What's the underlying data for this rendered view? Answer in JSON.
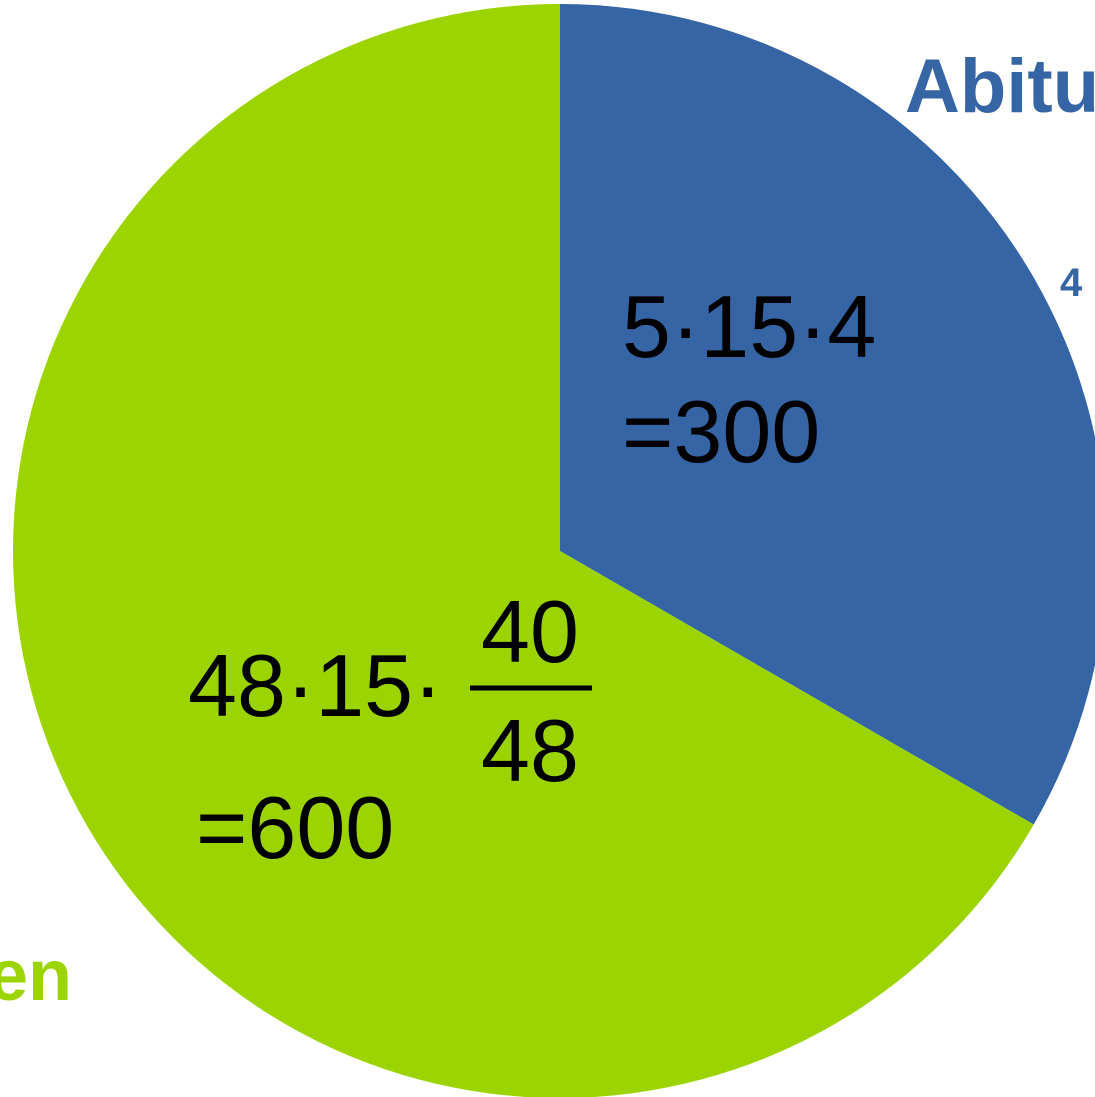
{
  "chart_data": {
    "type": "pie",
    "slices": [
      {
        "key": "abitur",
        "value": 300,
        "color": "#3565a5",
        "formula": "5·15·4",
        "result": "=300"
      },
      {
        "key": "other",
        "value": 600,
        "color": "#9bd400",
        "formula_prefix": "48·15·",
        "fraction_numerator": "40",
        "fraction_denominator": "48",
        "result": "=600"
      }
    ],
    "cropped_labels": {
      "abitur_label": "Abitu",
      "abitur_sub_label": "4",
      "green_label": "en",
      "green_sub_label": ","
    }
  }
}
